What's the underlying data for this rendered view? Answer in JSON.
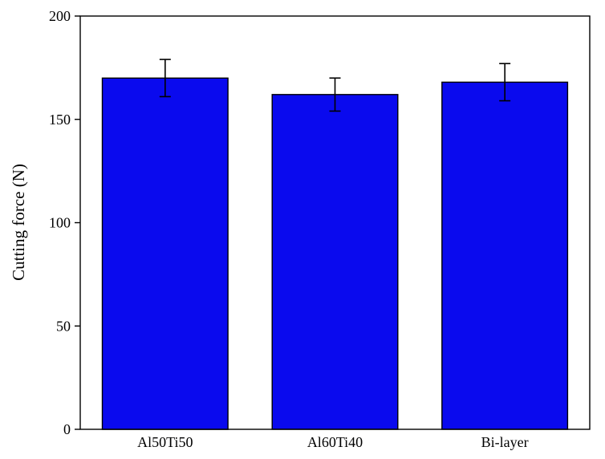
{
  "figure": {
    "background": "#ffffff"
  },
  "chart_data": {
    "type": "bar",
    "title": "",
    "xlabel": "",
    "ylabel": "Cutting force (N)",
    "categories": [
      "Al50Ti50",
      "Al60Ti40",
      "Bi-layer"
    ],
    "values": [
      170,
      162,
      168
    ],
    "errors": [
      9,
      8,
      9
    ],
    "ylim": [
      0,
      200
    ],
    "yticks": [
      0,
      50,
      100,
      150,
      200
    ],
    "bar_color": "#0a0aee",
    "bar_edge_color": "#000000",
    "error_bar_color": "#000000",
    "axis_color": "#000000",
    "grid": false,
    "legend": "none",
    "frame": "box"
  }
}
